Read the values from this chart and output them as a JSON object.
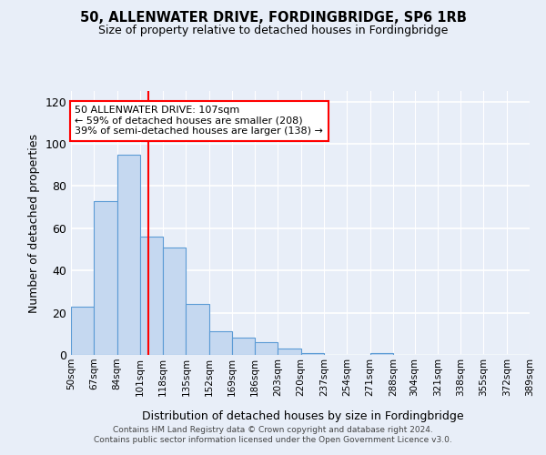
{
  "title": "50, ALLENWATER DRIVE, FORDINGBRIDGE, SP6 1RB",
  "subtitle": "Size of property relative to detached houses in Fordingbridge",
  "xlabel": "Distribution of detached houses by size in Fordingbridge",
  "ylabel": "Number of detached properties",
  "categories": [
    "50sqm",
    "67sqm",
    "84sqm",
    "101sqm",
    "118sqm",
    "135sqm",
    "152sqm",
    "169sqm",
    "186sqm",
    "203sqm",
    "220sqm",
    "237sqm",
    "254sqm",
    "271sqm",
    "288sqm",
    "304sqm",
    "321sqm",
    "338sqm",
    "355sqm",
    "372sqm",
    "389sqm"
  ],
  "bar_values": [
    23,
    73,
    95,
    56,
    51,
    24,
    11,
    8,
    6,
    3,
    1,
    0,
    0,
    1,
    0,
    0,
    0,
    0,
    0,
    0
  ],
  "bar_color": "#c5d8f0",
  "bar_edge_color": "#5b9bd5",
  "vline_x": 107,
  "vline_color": "red",
  "annotation_text": "50 ALLENWATER DRIVE: 107sqm\n← 59% of detached houses are smaller (208)\n39% of semi-detached houses are larger (138) →",
  "annotation_box_color": "white",
  "annotation_box_edge_color": "red",
  "ylim": [
    0,
    125
  ],
  "yticks": [
    0,
    20,
    40,
    60,
    80,
    100,
    120
  ],
  "footer_text": "Contains HM Land Registry data © Crown copyright and database right 2024.\nContains public sector information licensed under the Open Government Licence v3.0.",
  "bin_edges": [
    50,
    67,
    84,
    101,
    118,
    135,
    152,
    169,
    186,
    203,
    220,
    237,
    254,
    271,
    288,
    304,
    321,
    338,
    355,
    372,
    389
  ],
  "background_color": "#e8eef8"
}
